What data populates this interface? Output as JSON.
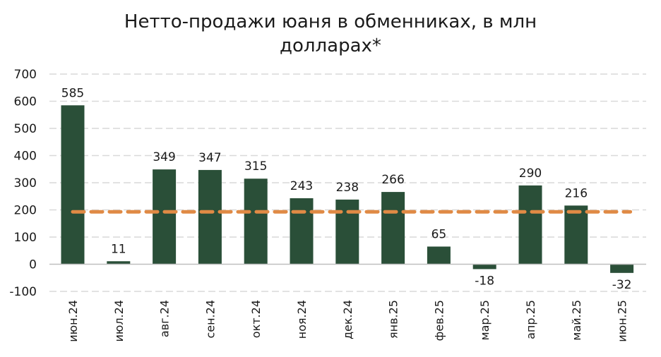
{
  "chart_data": {
    "type": "bar",
    "title_line1": "Нетто-продажи юаня в обменниках, в млн",
    "title_line2": "долларах*",
    "categories": [
      "июн.24",
      "июл.24",
      "авг.24",
      "сен.24",
      "окт.24",
      "ноя.24",
      "дек.24",
      "янв.25",
      "фев.25",
      "мар.25",
      "апр.25",
      "май.25",
      "июн.25"
    ],
    "values": [
      585,
      11,
      349,
      347,
      315,
      243,
      238,
      266,
      65,
      -18,
      290,
      216,
      -32
    ],
    "data_labels": [
      "585",
      "11",
      "349",
      "347",
      "315",
      "243",
      "238",
      "266",
      "65",
      "-18",
      "290",
      "216",
      "-32"
    ],
    "ylim": [
      -100,
      700
    ],
    "yticks": [
      700,
      600,
      500,
      400,
      300,
      200,
      100,
      0,
      -100
    ],
    "ytick_labels": [
      "700",
      "600",
      "500",
      "400",
      "300",
      "200",
      "100",
      "0",
      "-100"
    ],
    "average_line_value": 193,
    "grid": true,
    "colors": {
      "bar": "#2a4f38",
      "average_line": "#e08a45",
      "grid": "#d9d9d9",
      "zero_line": "#bfbfbf"
    }
  }
}
